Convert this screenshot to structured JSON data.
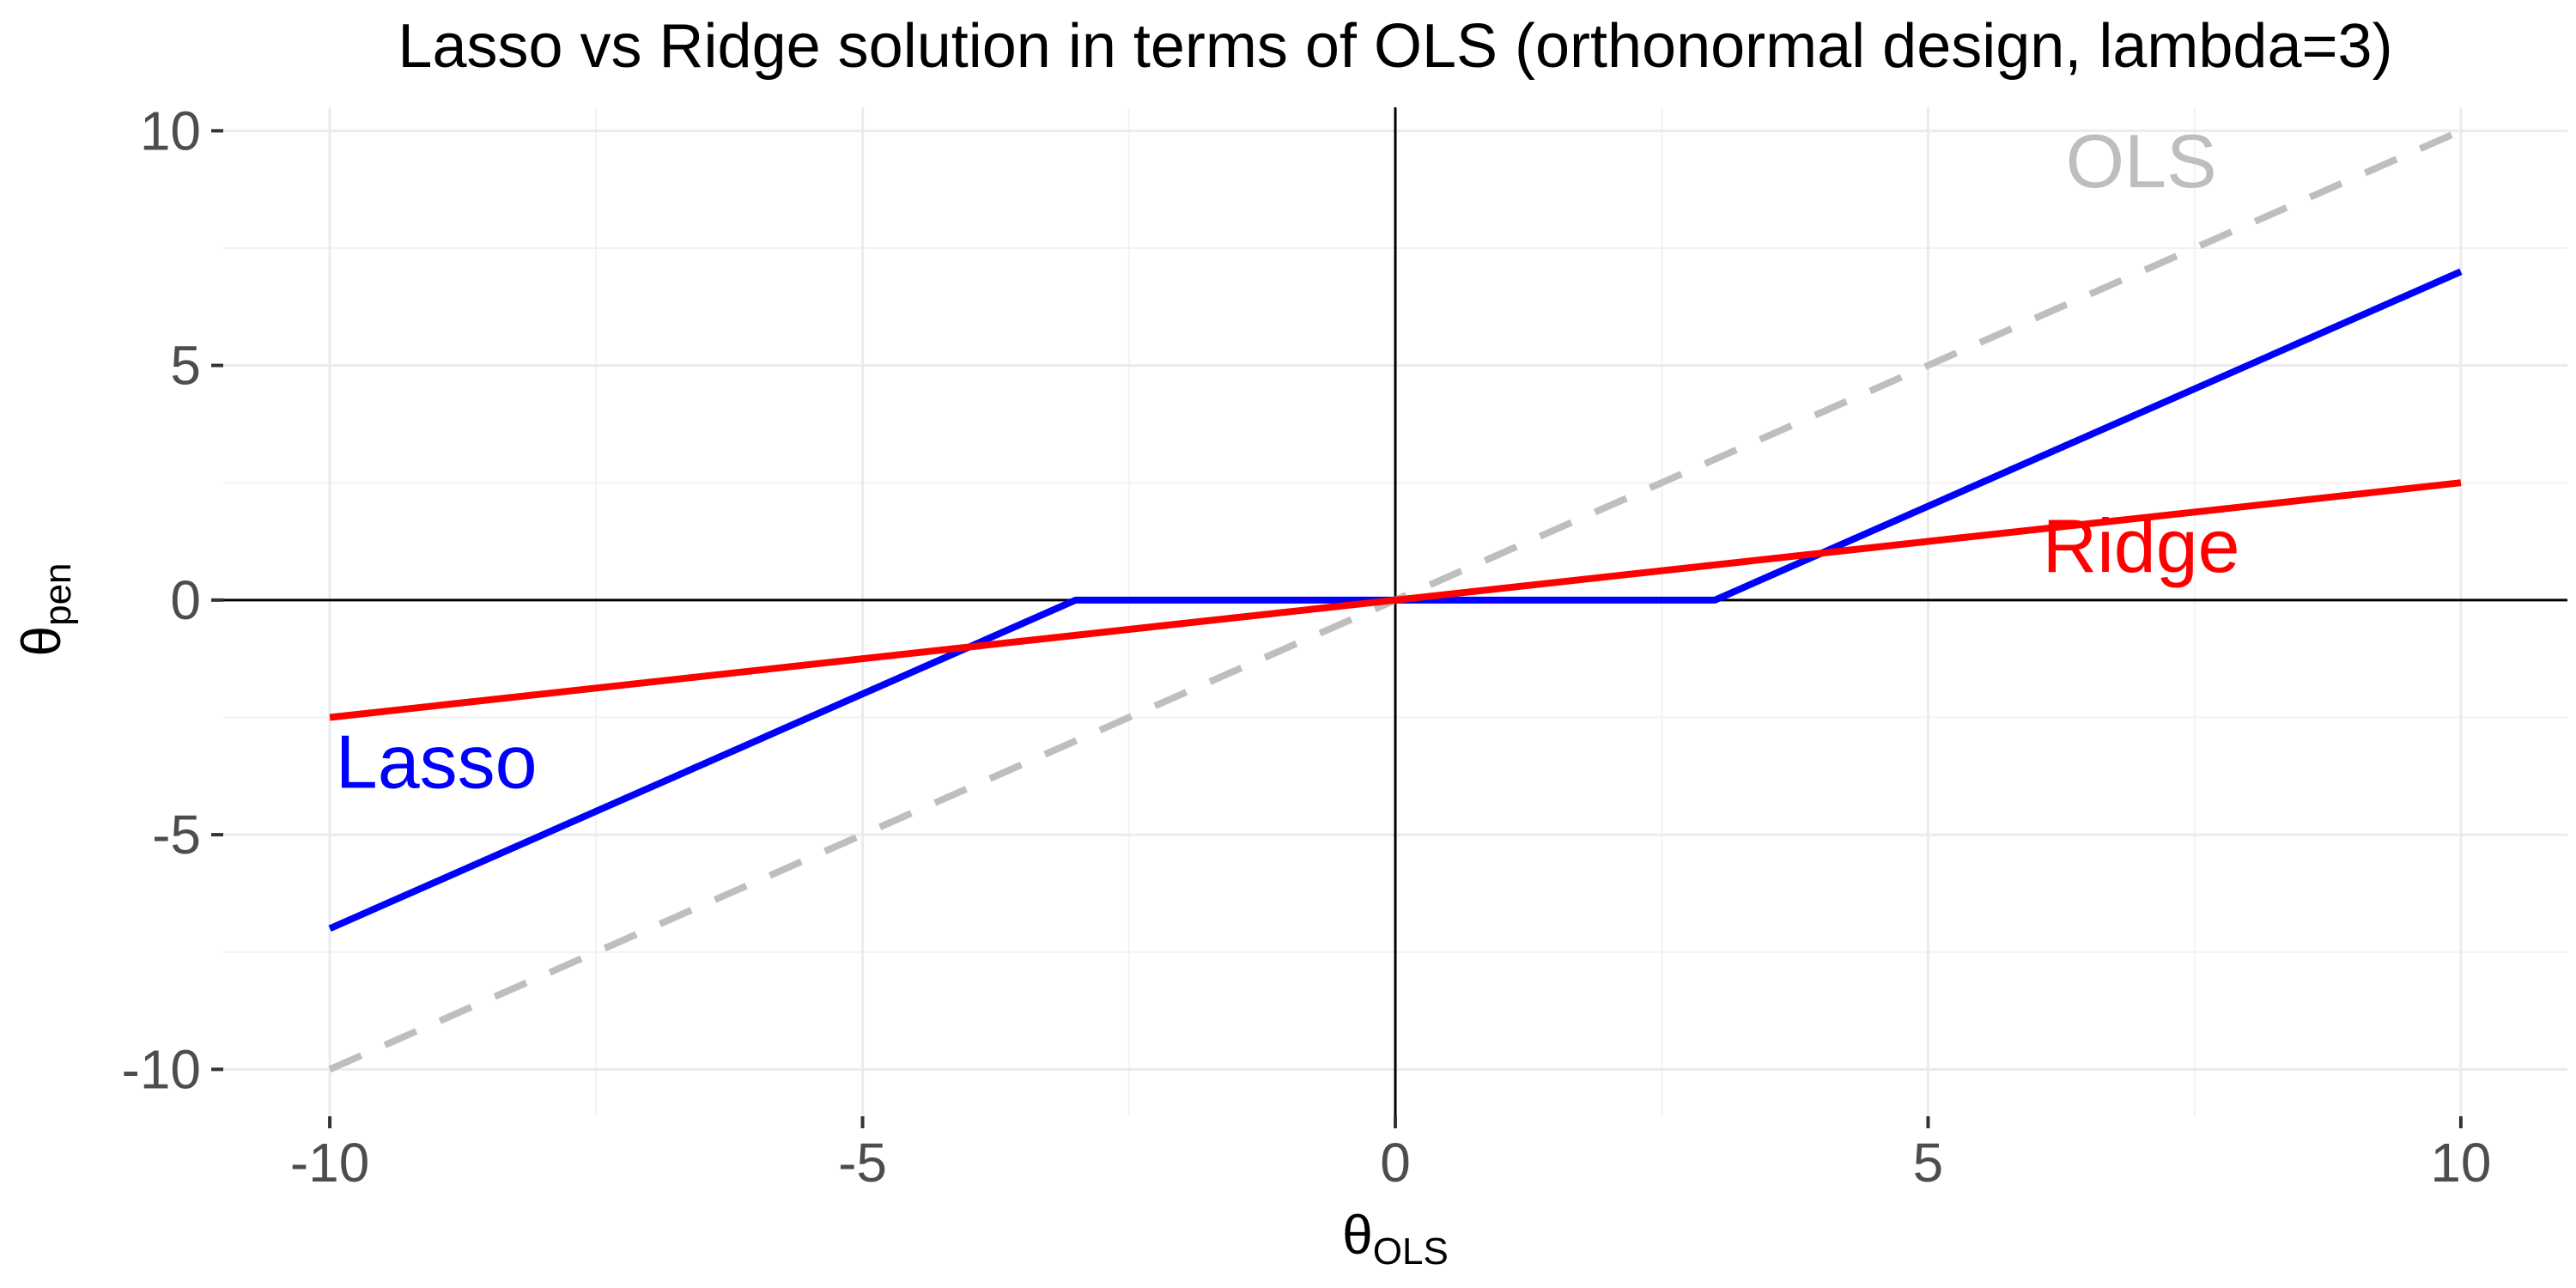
{
  "chart_data": {
    "type": "line",
    "title": "Lasso vs Ridge solution in terms of OLS (orthonormal design, lambda=3)",
    "xlabel": {
      "symbol": "θ",
      "subscript": "OLS"
    },
    "ylabel": {
      "symbol": "θ",
      "subscript": "pen"
    },
    "xlim": [
      -11,
      11.0
    ],
    "ylim": [
      -11,
      10.5
    ],
    "x_ticks": [
      -10,
      -5,
      0,
      5,
      10
    ],
    "x_tick_labels": [
      "-10",
      "-5",
      "0",
      "5",
      "10"
    ],
    "y_ticks": [
      -10,
      -5,
      0,
      5,
      10
    ],
    "y_tick_labels": [
      "-10",
      "-5",
      "0",
      "5",
      "10"
    ],
    "grid": true,
    "reference_lines": {
      "x": 0,
      "y": 0
    },
    "series": [
      {
        "name": "OLS",
        "color": "#bebebe",
        "dash": true,
        "x": [
          -10,
          10
        ],
        "y": [
          -10,
          10
        ],
        "label_at": [
          7,
          8.8
        ]
      },
      {
        "name": "Lasso",
        "color": "#0000ff",
        "dash": false,
        "x": [
          -10,
          -3,
          3,
          10
        ],
        "y": [
          -7,
          0,
          0,
          7
        ],
        "label_at": [
          -9,
          -4
        ]
      },
      {
        "name": "Ridge",
        "color": "#ff0000",
        "dash": false,
        "x": [
          -10,
          10
        ],
        "y": [
          -2.5,
          2.5
        ],
        "label_at": [
          7,
          0.6
        ]
      }
    ]
  }
}
